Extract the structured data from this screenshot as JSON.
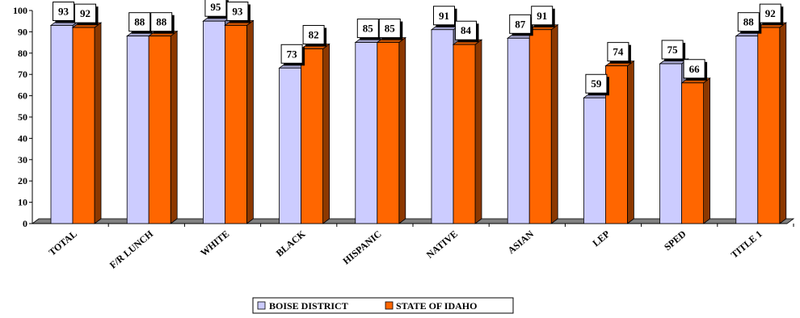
{
  "chart_data": {
    "type": "bar",
    "title": "",
    "xlabel": "",
    "ylabel": "",
    "ylim": [
      0,
      100
    ],
    "yticks": [
      0,
      10,
      20,
      30,
      40,
      50,
      60,
      70,
      80,
      90,
      100
    ],
    "grid": false,
    "legend_position": "bottom",
    "categories": [
      "TOTAL",
      "F/R LUNCH",
      "WHITE",
      "BLACK",
      "HISPANIC",
      "NATIVE",
      "ASIAN",
      "LEP",
      "SPED",
      "TITLE 1"
    ],
    "series": [
      {
        "name": "BOISE DISTRICT",
        "color": "#ccccff",
        "values": [
          93,
          88,
          95,
          73,
          85,
          91,
          87,
          59,
          75,
          88
        ]
      },
      {
        "name": "STATE OF IDAHO",
        "color": "#ff6600",
        "values": [
          92,
          88,
          93,
          82,
          85,
          84,
          91,
          74,
          66,
          92
        ]
      }
    ]
  }
}
